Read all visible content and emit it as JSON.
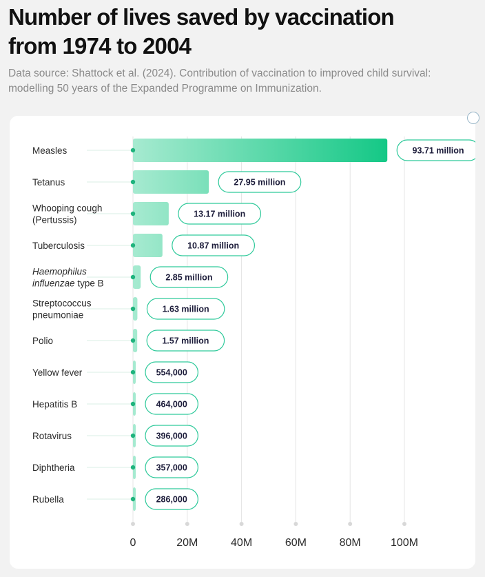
{
  "title": "Number of lives saved by vaccination from 1974 to 2004",
  "subtitle": "Data source: Shattock et al. (2024). Contribution of vaccination to improved child survival: modelling 50 years of the Expanded Programme on Immunization.",
  "colors": {
    "bar_start": "#a6ead0",
    "bar_end": "#14c886",
    "pill_border": "#2ec99a",
    "dot": "#1fb37d",
    "grid": "#e4e4e4",
    "label": "#2b2b2b",
    "value_text": "#1c1c3a"
  },
  "chart_data": {
    "type": "bar",
    "orientation": "horizontal",
    "title": "Number of lives saved by vaccination from 1974 to 2004",
    "xlabel": "",
    "ylabel": "",
    "xlim": [
      0,
      100000000
    ],
    "ticks": [
      {
        "value": 0,
        "label": "0"
      },
      {
        "value": 20000000,
        "label": "20M"
      },
      {
        "value": 40000000,
        "label": "40M"
      },
      {
        "value": 60000000,
        "label": "60M"
      },
      {
        "value": 80000000,
        "label": "80M"
      },
      {
        "value": 100000000,
        "label": "100M"
      }
    ],
    "grid": true,
    "categories": [
      {
        "lines": [
          "Measles"
        ],
        "value": 93710000,
        "label": "93.71 million"
      },
      {
        "lines": [
          "Tetanus"
        ],
        "value": 27950000,
        "label": "27.95 million"
      },
      {
        "lines": [
          "Whooping cough",
          "(Pertussis)"
        ],
        "value": 13170000,
        "label": "13.17 million"
      },
      {
        "lines": [
          "Tuberculosis"
        ],
        "value": 10870000,
        "label": "10.87 million"
      },
      {
        "lines": [
          "Haemophilus",
          "influenzae type B"
        ],
        "italic_words": [
          "Haemophilus",
          "influenzae"
        ],
        "value": 2850000,
        "label": "2.85 million"
      },
      {
        "lines": [
          "Streptococcus",
          "pneumoniae"
        ],
        "value": 1630000,
        "label": "1.63 million"
      },
      {
        "lines": [
          "Polio"
        ],
        "value": 1570000,
        "label": "1.57 million"
      },
      {
        "lines": [
          "Yellow fever"
        ],
        "value": 554000,
        "label": "554,000"
      },
      {
        "lines": [
          "Hepatitis B"
        ],
        "value": 464000,
        "label": "464,000"
      },
      {
        "lines": [
          "Rotavirus"
        ],
        "value": 396000,
        "label": "396,000"
      },
      {
        "lines": [
          "Diphtheria"
        ],
        "value": 357000,
        "label": "357,000"
      },
      {
        "lines": [
          "Rubella"
        ],
        "value": 286000,
        "label": "286,000"
      }
    ]
  }
}
